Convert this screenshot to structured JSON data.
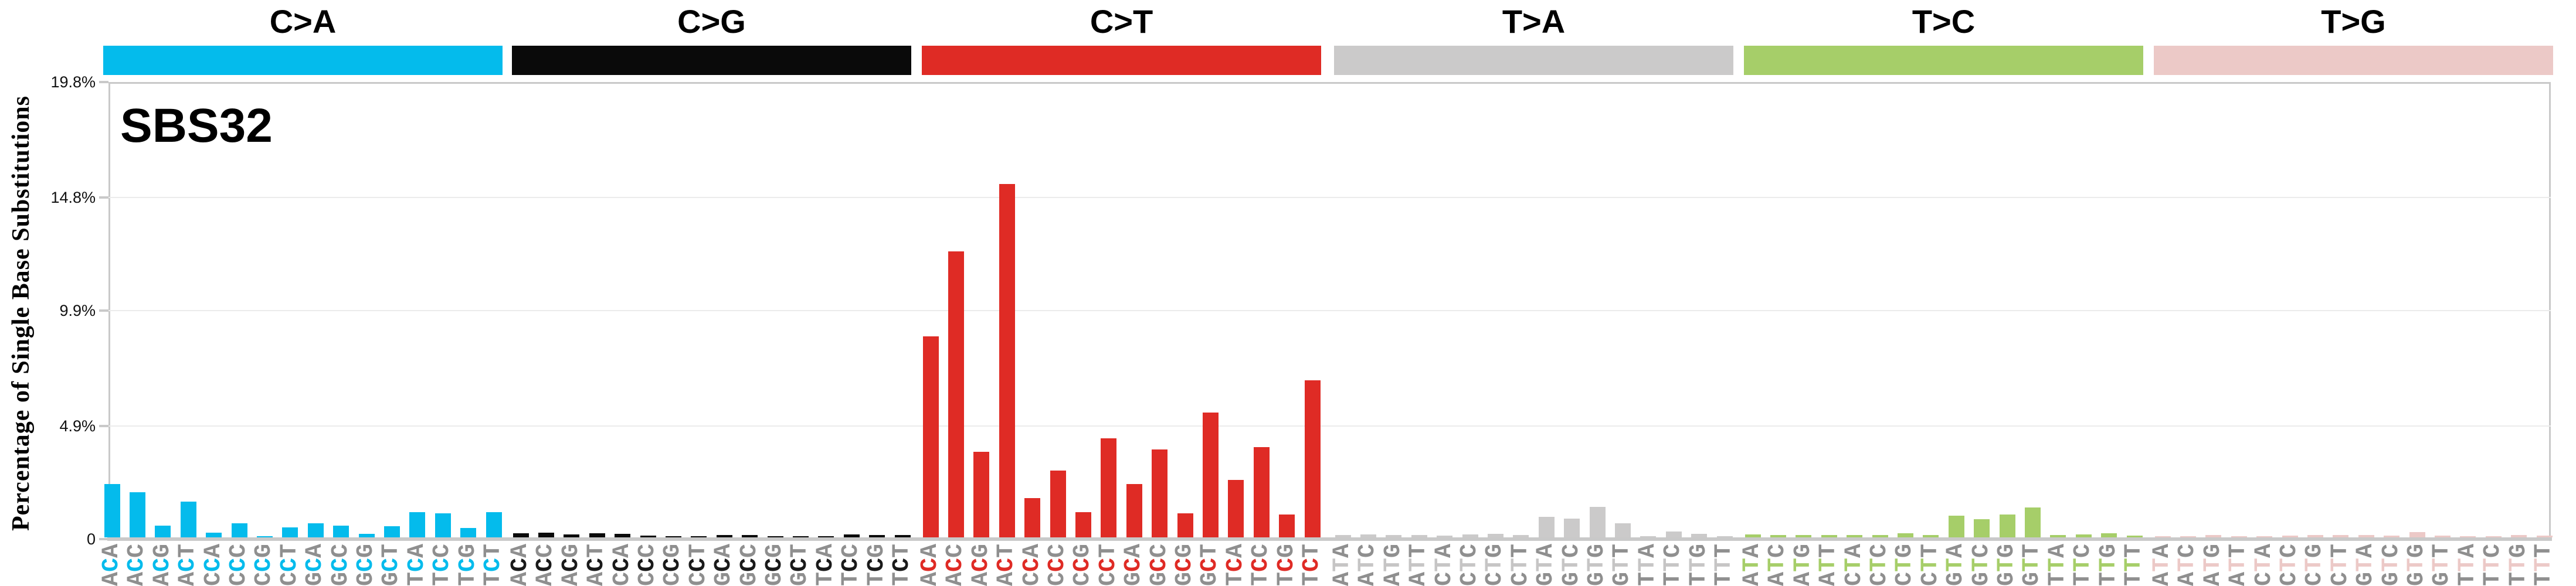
{
  "title": "SBS32",
  "y_axis": {
    "title": "Percentage of Single Base Substitutions",
    "tick_labels": [
      "0",
      "4.9%",
      "9.9%",
      "14.8%",
      "19.8%"
    ],
    "tick_values": [
      0,
      4.9,
      9.9,
      14.8,
      19.8
    ],
    "max": 19.8
  },
  "chart_data": {
    "type": "bar",
    "title": "SBS32",
    "xlabel": "",
    "ylabel": "Percentage of Single Base Substitutions",
    "ylim": [
      0,
      19.8
    ],
    "grid": "horizontal",
    "legend_position": "none",
    "categories": [
      "ACA",
      "ACC",
      "ACG",
      "ACT",
      "CCA",
      "CCC",
      "CCG",
      "CCT",
      "GCA",
      "GCC",
      "GCG",
      "GCT",
      "TCA",
      "TCC",
      "TCG",
      "TCT",
      "ACA",
      "ACC",
      "ACG",
      "ACT",
      "CCA",
      "CCC",
      "CCG",
      "CCT",
      "GCA",
      "GCC",
      "GCG",
      "GCT",
      "TCA",
      "TCC",
      "TCG",
      "TCT",
      "ACA",
      "ACC",
      "ACG",
      "ACT",
      "CCA",
      "CCC",
      "CCG",
      "CCT",
      "GCA",
      "GCC",
      "GCG",
      "GCT",
      "TCA",
      "TCC",
      "TCG",
      "TCT",
      "ATA",
      "ATC",
      "ATG",
      "ATT",
      "CTA",
      "CTC",
      "CTG",
      "CTT",
      "GTA",
      "GTC",
      "GTG",
      "GTT",
      "TTA",
      "TTC",
      "TTG",
      "TTT",
      "ATA",
      "ATC",
      "ATG",
      "ATT",
      "CTA",
      "CTC",
      "CTG",
      "CTT",
      "GTA",
      "GTC",
      "GTG",
      "GTT",
      "TTA",
      "TTC",
      "TTG",
      "TTT",
      "ATA",
      "ATC",
      "ATG",
      "ATT",
      "CTA",
      "CTC",
      "CTG",
      "CTT",
      "GTA",
      "GTC",
      "GTG",
      "GTT",
      "TTA",
      "TTC",
      "TTG",
      "TTT"
    ],
    "series": [
      {
        "name": "C>A",
        "strip_color": "#04bbec",
        "mid_letter_color": "#04bbec",
        "contexts": [
          "ACA",
          "ACC",
          "ACG",
          "ACT",
          "CCA",
          "CCC",
          "CCG",
          "CCT",
          "GCA",
          "GCC",
          "GCG",
          "GCT",
          "TCA",
          "TCC",
          "TCG",
          "TCT"
        ],
        "values": [
          2.3,
          1.95,
          0.5,
          1.55,
          0.2,
          0.6,
          0.04,
          0.42,
          0.6,
          0.5,
          0.15,
          0.47,
          1.08,
          1.04,
          0.4,
          1.08
        ]
      },
      {
        "name": "C>G",
        "strip_color": "#0a0a0a",
        "mid_letter_color": "#1a1a1a",
        "contexts": [
          "ACA",
          "ACC",
          "ACG",
          "ACT",
          "CCA",
          "CCC",
          "CCG",
          "CCT",
          "GCA",
          "GCC",
          "GCG",
          "GCT",
          "TCA",
          "TCC",
          "TCG",
          "TCT"
        ],
        "values": [
          0.19,
          0.21,
          0.12,
          0.17,
          0.15,
          0.08,
          0.05,
          0.04,
          0.1,
          0.11,
          0.05,
          0.06,
          0.02,
          0.12,
          0.09,
          0.09
        ]
      },
      {
        "name": "C>T",
        "strip_color": "#df2b25",
        "mid_letter_color": "#df2b25",
        "contexts": [
          "ACA",
          "ACC",
          "ACG",
          "ACT",
          "CCA",
          "CCC",
          "CCG",
          "CCT",
          "GCA",
          "GCC",
          "GCG",
          "GCT",
          "TCA",
          "TCC",
          "TCG",
          "TCT"
        ],
        "values": [
          8.7,
          12.4,
          3.7,
          15.3,
          1.7,
          2.9,
          1.1,
          4.3,
          2.3,
          3.8,
          1.05,
          5.4,
          2.5,
          3.9,
          1.0,
          6.8
        ]
      },
      {
        "name": "T>A",
        "strip_color": "#cbcaca",
        "mid_letter_color": "#c6c5c5",
        "contexts": [
          "ATA",
          "ATC",
          "ATG",
          "ATT",
          "CTA",
          "CTC",
          "CTG",
          "CTT",
          "GTA",
          "GTC",
          "GTG",
          "GTT",
          "TTA",
          "TTC",
          "TTG",
          "TTT"
        ],
        "values": [
          0.1,
          0.12,
          0.1,
          0.11,
          0.08,
          0.12,
          0.16,
          0.09,
          0.9,
          0.82,
          1.32,
          0.62,
          0.04,
          0.25,
          0.15,
          0.05
        ]
      },
      {
        "name": "T>C",
        "strip_color": "#a6ce69",
        "mid_letter_color": "#a6ce69",
        "contexts": [
          "ATA",
          "ATC",
          "ATG",
          "ATT",
          "CTA",
          "CTC",
          "CTG",
          "CTT",
          "GTA",
          "GTC",
          "GTG",
          "GTT",
          "TTA",
          "TTC",
          "TTG",
          "TTT"
        ],
        "values": [
          0.12,
          0.1,
          0.11,
          0.1,
          0.09,
          0.11,
          0.17,
          0.1,
          0.94,
          0.78,
          0.98,
          1.29,
          0.11,
          0.13,
          0.17,
          0.07
        ]
      },
      {
        "name": "T>G",
        "strip_color": "#ecc9c7",
        "mid_letter_color": "#ecc9c7",
        "contexts": [
          "ATA",
          "ATC",
          "ATG",
          "ATT",
          "CTA",
          "CTC",
          "CTG",
          "CTT",
          "GTA",
          "GTC",
          "GTG",
          "GTT",
          "TTA",
          "TTC",
          "TTG",
          "TTT"
        ],
        "values": [
          0.04,
          0.06,
          0.1,
          0.03,
          0.05,
          0.08,
          0.11,
          0.09,
          0.09,
          0.07,
          0.22,
          0.07,
          0.02,
          0.04,
          0.09,
          0.07
        ]
      }
    ]
  },
  "colors": {
    "outer_letter": "#8f8f8f",
    "grid": "#ebebeb",
    "axis": "#c9c9c9",
    "background": "#ffffff",
    "text": "#000000"
  }
}
